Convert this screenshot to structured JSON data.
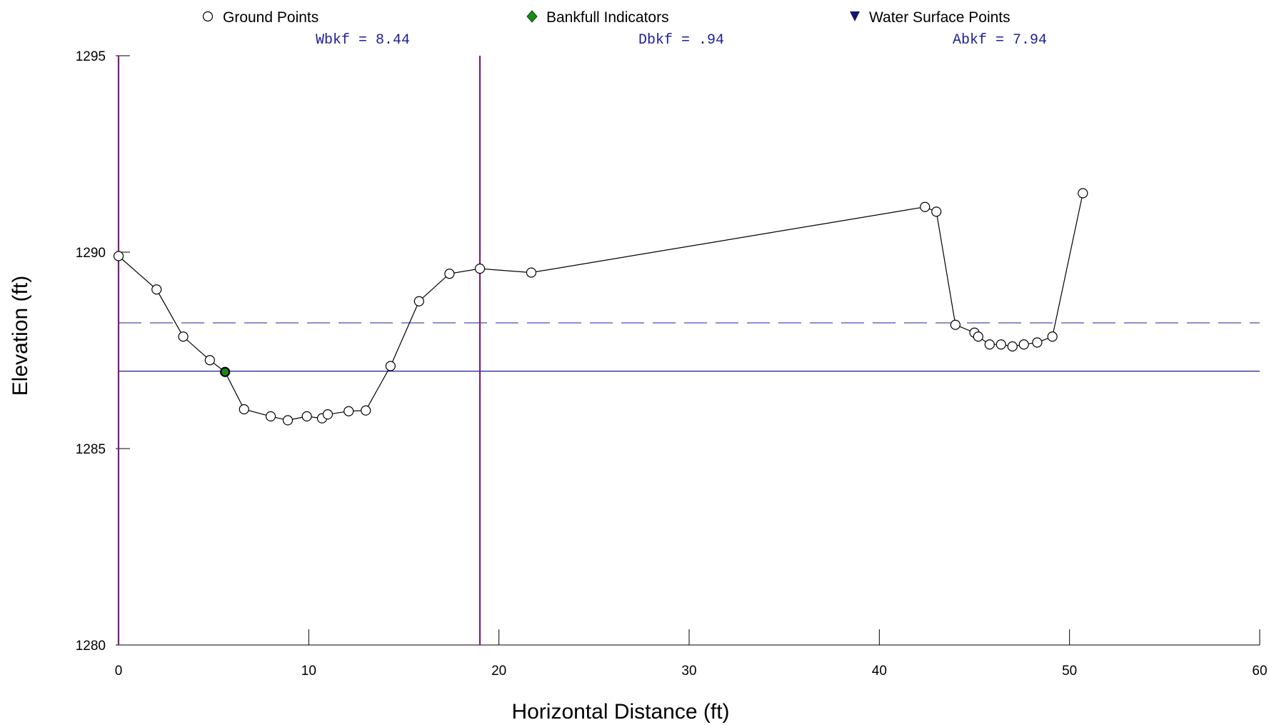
{
  "legend": {
    "ground": "Ground Points",
    "bankfull": "Bankfull Indicators",
    "water": "Water Surface Points"
  },
  "stats": {
    "wbkf": "Wbkf = 8.44",
    "dbkf": "Dbkf = .94",
    "abkf": "Abkf = 7.94"
  },
  "colors": {
    "ground_marker_fill": "#ffffff",
    "ground_line": "#000000",
    "bankfull_marker": "#1a8a1a",
    "water_marker": "#14146e",
    "bankfull_line": "#1c1c9c",
    "bank_bounds": "#7a1f7a"
  },
  "chart_data": {
    "type": "line",
    "xlabel": "Horizontal Distance (ft)",
    "ylabel": "Elevation (ft)",
    "xlim": [
      0,
      60
    ],
    "ylim": [
      1280,
      1295
    ],
    "x_ticks": [
      0,
      10,
      20,
      30,
      40,
      50,
      60
    ],
    "y_ticks": [
      1280,
      1285,
      1290,
      1295
    ],
    "series": [
      {
        "name": "Ground Points",
        "points": [
          [
            0,
            1289.9
          ],
          [
            2.0,
            1289.05
          ],
          [
            3.4,
            1287.85
          ],
          [
            4.8,
            1287.25
          ],
          [
            5.6,
            1286.95
          ],
          [
            6.6,
            1286.0
          ],
          [
            8.0,
            1285.82
          ],
          [
            8.9,
            1285.72
          ],
          [
            9.9,
            1285.82
          ],
          [
            10.7,
            1285.77
          ],
          [
            11.0,
            1285.87
          ],
          [
            12.1,
            1285.95
          ],
          [
            13.0,
            1285.97
          ],
          [
            14.3,
            1287.1
          ],
          [
            15.8,
            1288.75
          ],
          [
            17.4,
            1289.45
          ],
          [
            19.0,
            1289.58
          ],
          [
            21.7,
            1289.48
          ],
          [
            42.4,
            1291.15
          ],
          [
            43.0,
            1291.03
          ],
          [
            44.0,
            1288.15
          ],
          [
            45.0,
            1287.95
          ],
          [
            45.2,
            1287.85
          ],
          [
            45.8,
            1287.65
          ],
          [
            46.4,
            1287.65
          ],
          [
            47.0,
            1287.6
          ],
          [
            47.6,
            1287.65
          ],
          [
            48.3,
            1287.7
          ],
          [
            49.1,
            1287.85
          ],
          [
            50.7,
            1291.5
          ]
        ]
      },
      {
        "name": "Bankfull Indicators",
        "points": [
          [
            5.6,
            1286.95
          ]
        ]
      }
    ],
    "bankfull_elevation": 1286.97,
    "flood_prone_elevation": 1288.2,
    "bank_bounds_x": [
      0,
      19.0
    ]
  }
}
